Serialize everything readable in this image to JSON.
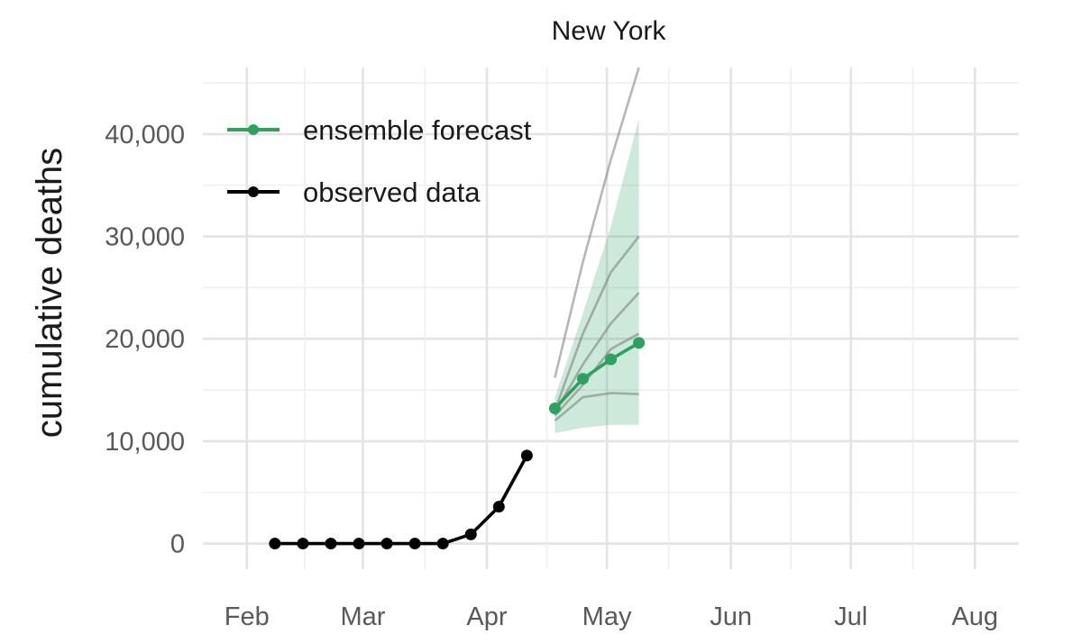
{
  "chart_data": {
    "type": "line",
    "title": "New York",
    "xlabel": "",
    "ylabel": "cumulative deaths",
    "x_ticks": [
      "Feb",
      "Mar",
      "Apr",
      "May",
      "Jun",
      "Jul",
      "Aug"
    ],
    "xlim": [
      "2020-01-21",
      "2020-08-12"
    ],
    "y_ticks": [
      0,
      10000,
      20000,
      30000,
      40000
    ],
    "y_tick_labels": [
      "0",
      "10,000",
      "20,000",
      "30,000",
      "40,000"
    ],
    "ylim": [
      -2500,
      46500
    ],
    "grid": true,
    "legend_position": "top-left",
    "series": [
      {
        "name": "observed data",
        "color": "#000000",
        "x": [
          "2020-02-08",
          "2020-02-15",
          "2020-02-22",
          "2020-02-29",
          "2020-03-07",
          "2020-03-14",
          "2020-03-21",
          "2020-03-28",
          "2020-04-04",
          "2020-04-11"
        ],
        "values": [
          0,
          0,
          0,
          0,
          0,
          0,
          0,
          900,
          3600,
          8600
        ]
      },
      {
        "name": "ensemble forecast",
        "color": "#2ca25f",
        "x": [
          "2020-04-18",
          "2020-04-25",
          "2020-05-02",
          "2020-05-09"
        ],
        "values": [
          13200,
          16100,
          18000,
          19600
        ]
      }
    ],
    "interval": {
      "x": [
        "2020-04-18",
        "2020-04-25",
        "2020-05-02",
        "2020-05-09"
      ],
      "lower": [
        10800,
        11300,
        11600,
        11600
      ],
      "upper": [
        14300,
        22500,
        31000,
        41500
      ],
      "color": "#2ca25f"
    },
    "model_lines": [
      {
        "x": [
          "2020-04-18",
          "2020-04-25",
          "2020-05-02",
          "2020-05-09"
        ],
        "values": [
          16200,
          27500,
          37500,
          46500
        ]
      },
      {
        "x": [
          "2020-04-18",
          "2020-04-25",
          "2020-05-02",
          "2020-05-09"
        ],
        "values": [
          13000,
          20500,
          26500,
          30000
        ]
      },
      {
        "x": [
          "2020-04-18",
          "2020-04-25",
          "2020-05-02",
          "2020-05-09"
        ],
        "values": [
          12800,
          17500,
          21500,
          24500
        ]
      },
      {
        "x": [
          "2020-04-18",
          "2020-04-25",
          "2020-05-02",
          "2020-05-09"
        ],
        "values": [
          12500,
          15500,
          19000,
          20500
        ]
      },
      {
        "x": [
          "2020-04-18",
          "2020-04-25",
          "2020-05-02",
          "2020-05-09"
        ],
        "values": [
          12000,
          14300,
          14700,
          14600
        ]
      }
    ]
  }
}
